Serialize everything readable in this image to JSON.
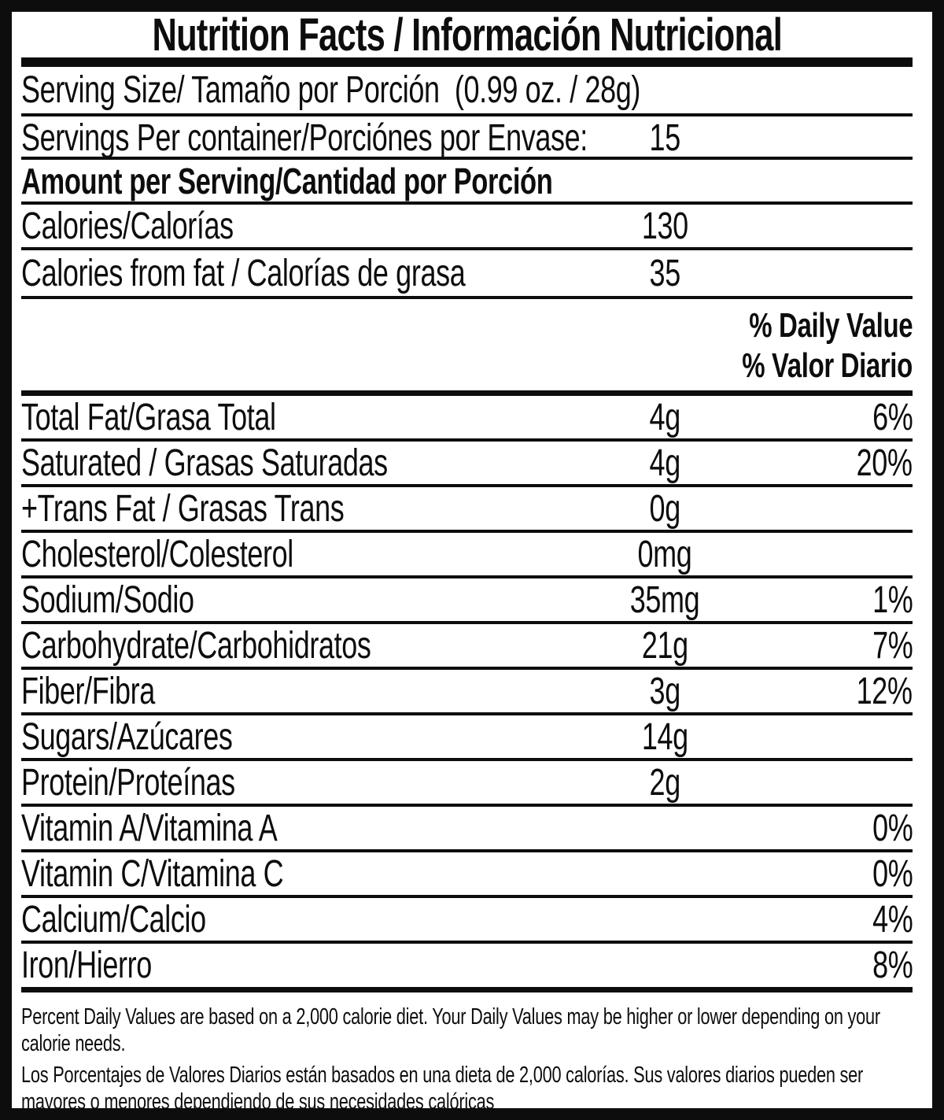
{
  "title": "Nutrition Facts / Información Nutricional",
  "serving": {
    "size_label": "Serving Size/ Tamaño por Porción  (0.99 oz. / 28g)",
    "per_container_label": "Servings Per container/Porciónes por Envase:",
    "per_container_value": "15"
  },
  "amount_header": "Amount per Serving/Cantidad por Porción",
  "calories": {
    "label": "Calories/Calorías",
    "value": "130"
  },
  "calories_from_fat": {
    "label": "Calories from fat / Calorías de grasa",
    "value": "35"
  },
  "dv_header": {
    "line1": "% Daily Value",
    "line2": "% Valor Diario"
  },
  "nutrients": [
    {
      "label": "Total Fat/Grasa Total",
      "amount": "4g",
      "dv": "6%"
    },
    {
      "label": "Saturated / Grasas Saturadas",
      "amount": "4g",
      "dv": "20%"
    },
    {
      "label": "+Trans Fat / Grasas Trans",
      "amount": "0g",
      "dv": ""
    },
    {
      "label": "Cholesterol/Colesterol",
      "amount": "0mg",
      "dv": ""
    },
    {
      "label": "Sodium/Sodio",
      "amount": "35mg",
      "dv": "1%"
    },
    {
      "label": "Carbohydrate/Carbohidratos",
      "amount": "21g",
      "dv": "7%"
    },
    {
      "label": "Fiber/Fibra",
      "amount": "3g",
      "dv": "12%"
    },
    {
      "label": "Sugars/Azúcares",
      "amount": "14g",
      "dv": ""
    },
    {
      "label": "Protein/Proteínas",
      "amount": "2g",
      "dv": ""
    },
    {
      "label": "Vitamin A/Vitamina A",
      "amount": "",
      "dv": "0%"
    },
    {
      "label": "Vitamin C/Vitamina C",
      "amount": "",
      "dv": "0%"
    },
    {
      "label": "Calcium/Calcio",
      "amount": "",
      "dv": "4%"
    },
    {
      "label": "Iron/Hierro",
      "amount": "",
      "dv": "8%"
    }
  ],
  "footnote": {
    "en": "Percent Daily Values are based on a 2,000 calorie diet. Your Daily Values may be higher or lower depending on your calorie needs.",
    "es": "Los Porcentajes de Valores Diarios están basados en una dieta de 2,000 calorías. Sus valores diarios pueden ser mayores o menores dependiendo de sus necesidades calóricas"
  },
  "colors": {
    "ink": "#0d0d0d",
    "background": "#ffffff"
  }
}
